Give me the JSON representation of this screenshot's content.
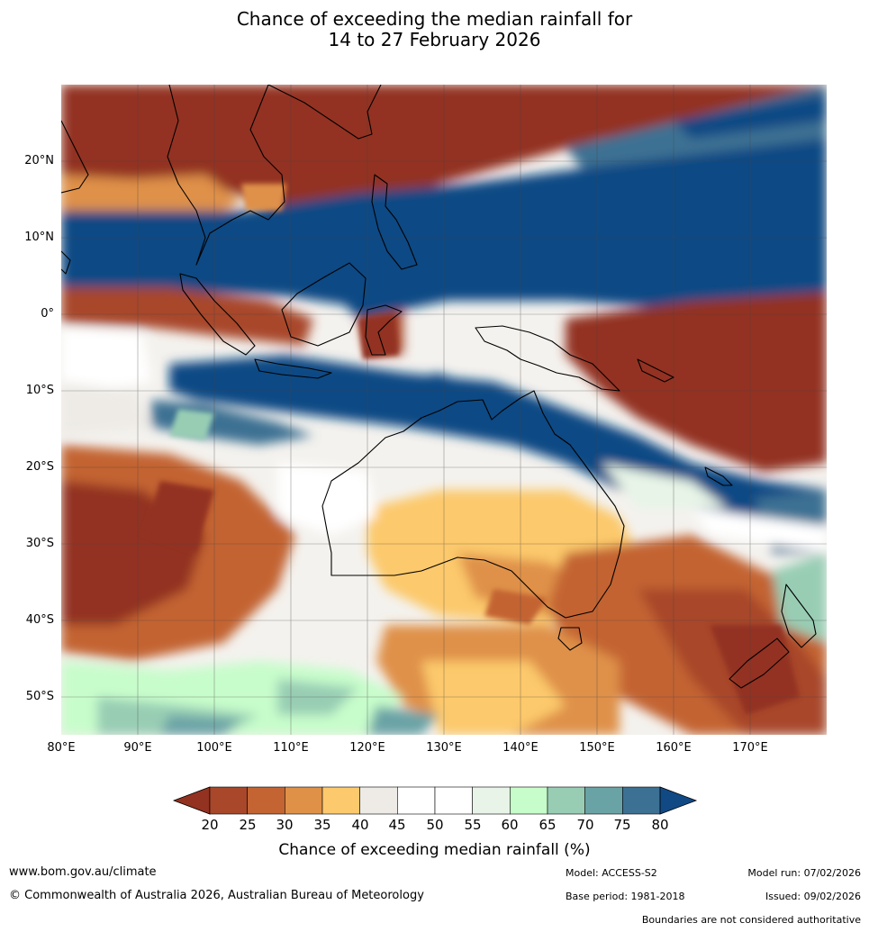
{
  "title_line1": "Chance of exceeding the median rainfall for",
  "title_line2": "14 to 27 February 2026",
  "map": {
    "lat_labels": [
      "20°N",
      "10°N",
      "0°",
      "10°S",
      "20°S",
      "30°S",
      "40°S",
      "50°S"
    ],
    "lon_labels": [
      "80°E",
      "90°E",
      "100°E",
      "110°E",
      "120°E",
      "130°E",
      "140°E",
      "150°E",
      "160°E",
      "170°E"
    ]
  },
  "colorbar": {
    "title": "Chance of exceeding median rainfall (%)",
    "ticks": [
      "20",
      "25",
      "30",
      "35",
      "40",
      "45",
      "50",
      "55",
      "60",
      "65",
      "70",
      "75",
      "80"
    ],
    "colors": [
      "#933220",
      "#a8472a",
      "#c36432",
      "#df9148",
      "#fcc96c",
      "#eeebe6",
      "#ffffff",
      "#ffffff",
      "#e7f4e7",
      "#c7fdcb",
      "#98cdb4",
      "#6aa3a6",
      "#3c7193",
      "#114984"
    ]
  },
  "footer": {
    "website": "www.bom.gov.au/climate",
    "copyright": "© Commonwealth of Australia 2026, Australian Bureau of Meteorology",
    "model": "Model: ACCESS-S2",
    "model_run": "Model run: 07/02/2026",
    "base_period": "Base period: 1981-2018",
    "issued": "Issued: 09/02/2026",
    "boundaries": "Boundaries are not considered authoritative"
  }
}
